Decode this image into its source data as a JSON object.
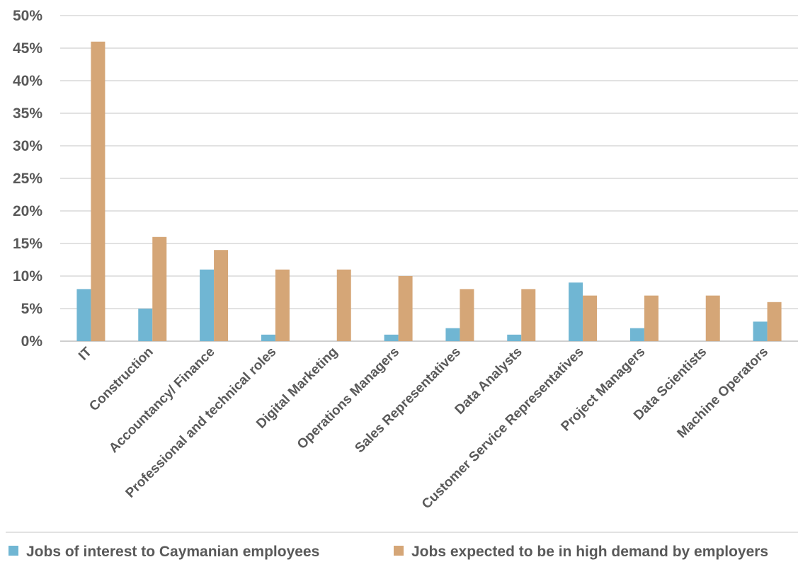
{
  "chart_data": {
    "type": "bar",
    "categories": [
      "IT",
      "Construction",
      "Accountancy/ Finance",
      "Professional and technical roles",
      "Digital Marketing",
      "Operations Managers",
      "Sales Representatives",
      "Data Analysts",
      "Customer Service Representatives",
      "Project Managers",
      "Data Scientists",
      "Machine Operators"
    ],
    "series": [
      {
        "name": "Jobs of interest to Caymanian employees",
        "color": "#70b6d3",
        "values": [
          8,
          5,
          11,
          1,
          0,
          1,
          2,
          1,
          9,
          2,
          0,
          3
        ]
      },
      {
        "name": "Jobs expected to be in high demand by employers",
        "color": "#d5a677",
        "values": [
          46,
          16,
          14,
          11,
          11,
          10,
          8,
          8,
          7,
          7,
          7,
          6
        ]
      }
    ],
    "ylim": [
      0,
      50
    ],
    "yticks": [
      "0%",
      "5%",
      "10%",
      "15%",
      "20%",
      "25%",
      "30%",
      "35%",
      "40%",
      "45%",
      "50%"
    ],
    "grid": true,
    "legend_position": "bottom",
    "title": "",
    "xlabel": "",
    "ylabel": ""
  }
}
